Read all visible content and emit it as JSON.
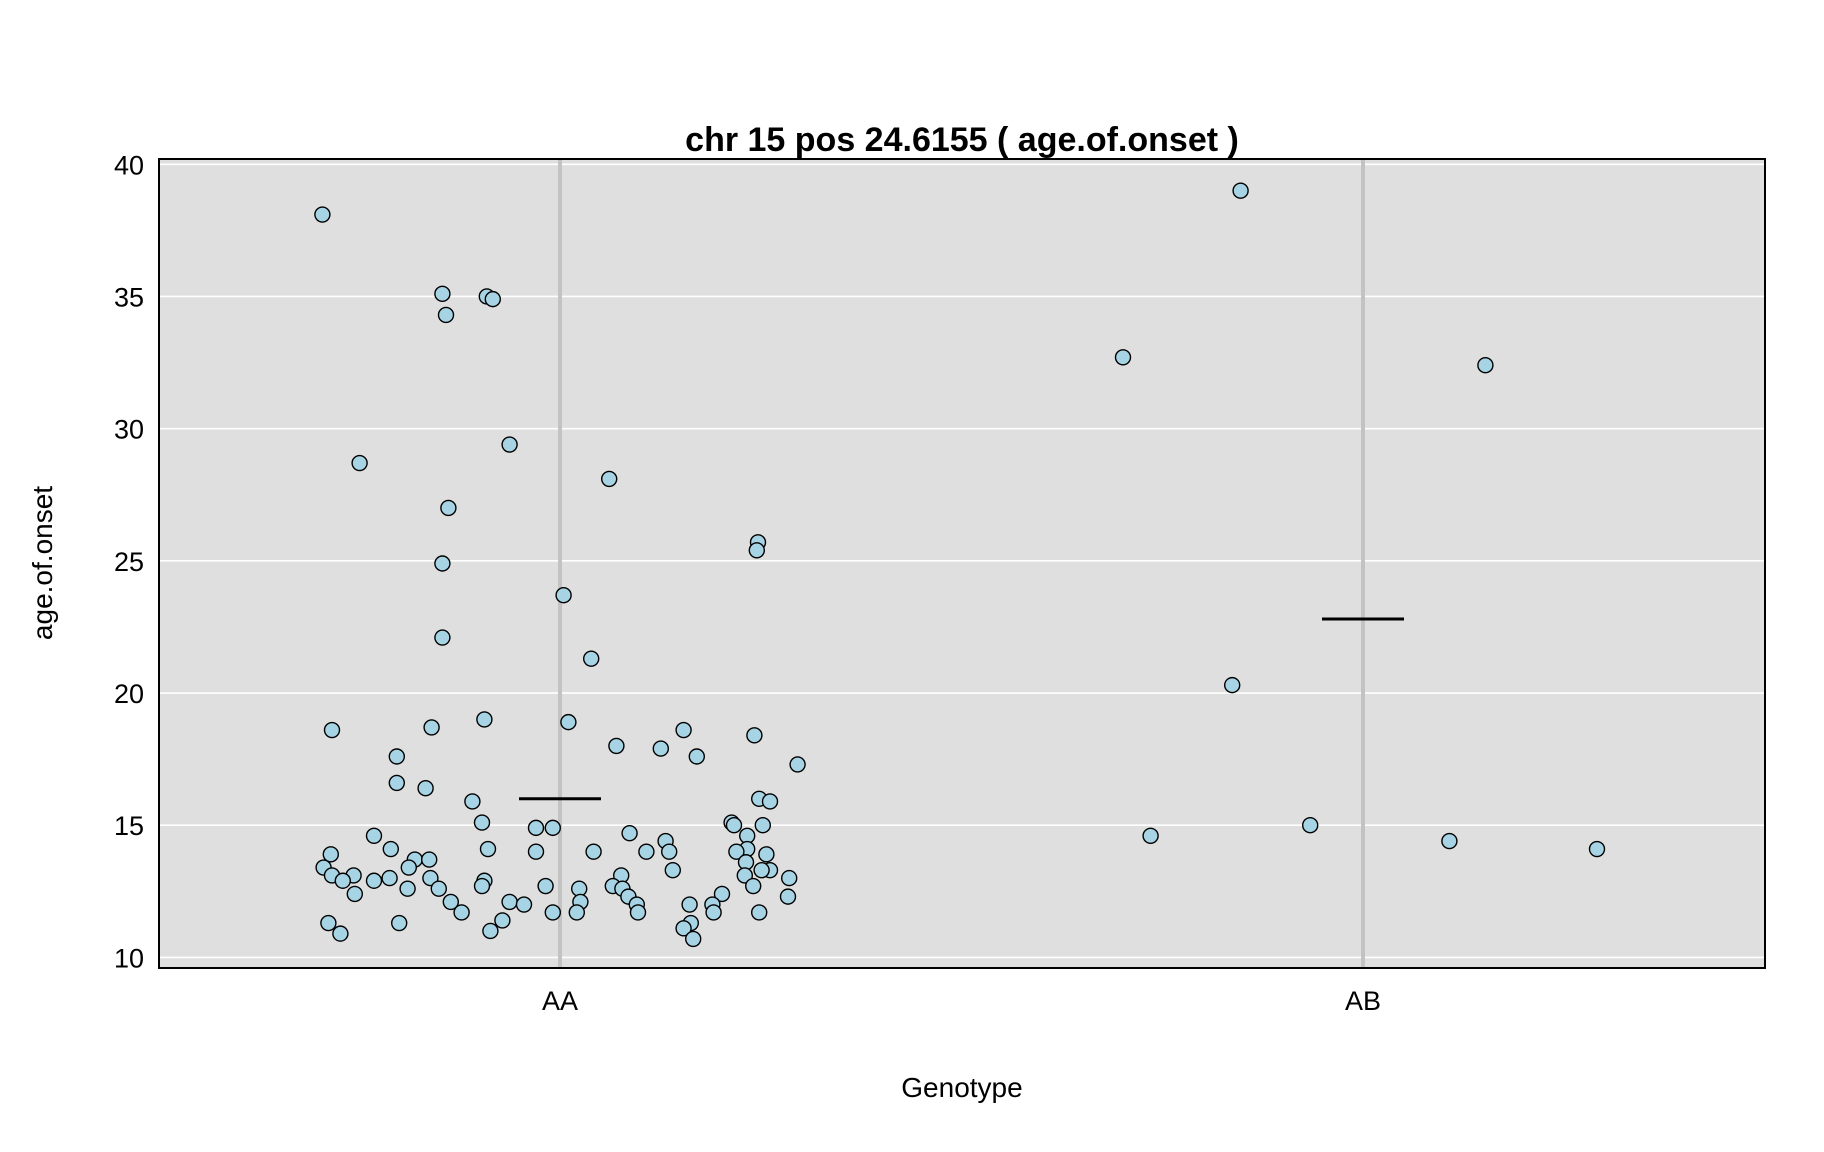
{
  "chart_data": {
    "type": "scatter",
    "title": "chr 15 pos 24.6155 ( age.of.onset )",
    "xlabel": "Genotype",
    "ylabel": "age.of.onset",
    "categories": [
      "AA",
      "AB"
    ],
    "ylim": [
      9.6,
      40.2
    ],
    "yticks": [
      10,
      15,
      20,
      25,
      30,
      35,
      40
    ],
    "grid": true,
    "colors": {
      "panel_bg": "#dfdfdf",
      "grid": "#ffffff",
      "category_line": "#c3c3c3",
      "point_fill": "#a7d4e4",
      "point_stroke": "#000000",
      "mean_line": "#000000"
    },
    "means": [
      {
        "category": "AA",
        "value": 16.0
      },
      {
        "category": "AB",
        "value": 22.8
      }
    ],
    "series": [
      {
        "category": "AA",
        "points": [
          {
            "jitter": -0.198,
            "y": 38.1
          },
          {
            "jitter": -0.098,
            "y": 35.1
          },
          {
            "jitter": -0.061,
            "y": 35.0
          },
          {
            "jitter": -0.056,
            "y": 34.9
          },
          {
            "jitter": -0.095,
            "y": 34.3
          },
          {
            "jitter": -0.042,
            "y": 29.4
          },
          {
            "jitter": -0.167,
            "y": 28.7
          },
          {
            "jitter": 0.041,
            "y": 28.1
          },
          {
            "jitter": -0.093,
            "y": 27.0
          },
          {
            "jitter": 0.165,
            "y": 25.7
          },
          {
            "jitter": 0.164,
            "y": 25.4
          },
          {
            "jitter": -0.098,
            "y": 24.9
          },
          {
            "jitter": 0.003,
            "y": 23.7
          },
          {
            "jitter": -0.098,
            "y": 22.1
          },
          {
            "jitter": 0.026,
            "y": 21.3
          },
          {
            "jitter": -0.063,
            "y": 19.0
          },
          {
            "jitter": 0.007,
            "y": 18.9
          },
          {
            "jitter": -0.107,
            "y": 18.7
          },
          {
            "jitter": -0.19,
            "y": 18.6
          },
          {
            "jitter": 0.103,
            "y": 18.6
          },
          {
            "jitter": 0.162,
            "y": 18.4
          },
          {
            "jitter": 0.047,
            "y": 18.0
          },
          {
            "jitter": 0.084,
            "y": 17.9
          },
          {
            "jitter": -0.136,
            "y": 17.6
          },
          {
            "jitter": 0.114,
            "y": 17.6
          },
          {
            "jitter": 0.198,
            "y": 17.3
          },
          {
            "jitter": -0.136,
            "y": 16.6
          },
          {
            "jitter": -0.112,
            "y": 16.4
          },
          {
            "jitter": 0.166,
            "y": 16.0
          },
          {
            "jitter": 0.175,
            "y": 15.9
          },
          {
            "jitter": -0.073,
            "y": 15.9
          },
          {
            "jitter": -0.065,
            "y": 15.1
          },
          {
            "jitter": 0.143,
            "y": 15.1
          },
          {
            "jitter": 0.145,
            "y": 15.0
          },
          {
            "jitter": 0.169,
            "y": 15.0
          },
          {
            "jitter": -0.02,
            "y": 14.9
          },
          {
            "jitter": -0.006,
            "y": 14.9
          },
          {
            "jitter": 0.058,
            "y": 14.7
          },
          {
            "jitter": -0.155,
            "y": 14.6
          },
          {
            "jitter": 0.156,
            "y": 14.6
          },
          {
            "jitter": 0.088,
            "y": 14.4
          },
          {
            "jitter": -0.141,
            "y": 14.1
          },
          {
            "jitter": -0.06,
            "y": 14.1
          },
          {
            "jitter": 0.156,
            "y": 14.1
          },
          {
            "jitter": -0.02,
            "y": 14.0
          },
          {
            "jitter": 0.028,
            "y": 14.0
          },
          {
            "jitter": 0.072,
            "y": 14.0
          },
          {
            "jitter": 0.091,
            "y": 14.0
          },
          {
            "jitter": 0.147,
            "y": 14.0
          },
          {
            "jitter": 0.172,
            "y": 13.9
          },
          {
            "jitter": -0.191,
            "y": 13.9
          },
          {
            "jitter": -0.121,
            "y": 13.7
          },
          {
            "jitter": -0.109,
            "y": 13.7
          },
          {
            "jitter": 0.155,
            "y": 13.6
          },
          {
            "jitter": -0.126,
            "y": 13.4
          },
          {
            "jitter": -0.197,
            "y": 13.4
          },
          {
            "jitter": 0.094,
            "y": 13.3
          },
          {
            "jitter": 0.175,
            "y": 13.3
          },
          {
            "jitter": 0.168,
            "y": 13.3
          },
          {
            "jitter": -0.19,
            "y": 13.1
          },
          {
            "jitter": -0.172,
            "y": 13.1
          },
          {
            "jitter": -0.142,
            "y": 13.0
          },
          {
            "jitter": -0.108,
            "y": 13.0
          },
          {
            "jitter": 0.051,
            "y": 13.1
          },
          {
            "jitter": 0.154,
            "y": 13.1
          },
          {
            "jitter": 0.191,
            "y": 13.0
          },
          {
            "jitter": -0.181,
            "y": 12.9
          },
          {
            "jitter": -0.155,
            "y": 12.9
          },
          {
            "jitter": -0.063,
            "y": 12.9
          },
          {
            "jitter": -0.065,
            "y": 12.7
          },
          {
            "jitter": -0.012,
            "y": 12.7
          },
          {
            "jitter": 0.044,
            "y": 12.7
          },
          {
            "jitter": 0.161,
            "y": 12.7
          },
          {
            "jitter": -0.101,
            "y": 12.6
          },
          {
            "jitter": -0.127,
            "y": 12.6
          },
          {
            "jitter": 0.016,
            "y": 12.6
          },
          {
            "jitter": 0.052,
            "y": 12.6
          },
          {
            "jitter": -0.171,
            "y": 12.4
          },
          {
            "jitter": 0.135,
            "y": 12.4
          },
          {
            "jitter": 0.057,
            "y": 12.3
          },
          {
            "jitter": 0.19,
            "y": 12.3
          },
          {
            "jitter": -0.091,
            "y": 12.1
          },
          {
            "jitter": -0.042,
            "y": 12.1
          },
          {
            "jitter": 0.017,
            "y": 12.1
          },
          {
            "jitter": -0.03,
            "y": 12.0
          },
          {
            "jitter": 0.064,
            "y": 12.0
          },
          {
            "jitter": 0.108,
            "y": 12.0
          },
          {
            "jitter": 0.127,
            "y": 12.0
          },
          {
            "jitter": -0.082,
            "y": 11.7
          },
          {
            "jitter": -0.006,
            "y": 11.7
          },
          {
            "jitter": 0.014,
            "y": 11.7
          },
          {
            "jitter": 0.065,
            "y": 11.7
          },
          {
            "jitter": 0.128,
            "y": 11.7
          },
          {
            "jitter": 0.166,
            "y": 11.7
          },
          {
            "jitter": -0.048,
            "y": 11.4
          },
          {
            "jitter": -0.193,
            "y": 11.3
          },
          {
            "jitter": -0.134,
            "y": 11.3
          },
          {
            "jitter": 0.109,
            "y": 11.3
          },
          {
            "jitter": 0.103,
            "y": 11.1
          },
          {
            "jitter": -0.058,
            "y": 11.0
          },
          {
            "jitter": -0.183,
            "y": 10.9
          },
          {
            "jitter": 0.111,
            "y": 10.7
          }
        ]
      },
      {
        "category": "AB",
        "points": [
          {
            "jitter": -0.102,
            "y": 39.0
          },
          {
            "jitter": -0.2,
            "y": 32.7
          },
          {
            "jitter": 0.102,
            "y": 32.4
          },
          {
            "jitter": -0.109,
            "y": 20.3
          },
          {
            "jitter": -0.044,
            "y": 15.0
          },
          {
            "jitter": -0.177,
            "y": 14.6
          },
          {
            "jitter": 0.072,
            "y": 14.4
          },
          {
            "jitter": 0.195,
            "y": 14.1
          }
        ]
      }
    ]
  }
}
